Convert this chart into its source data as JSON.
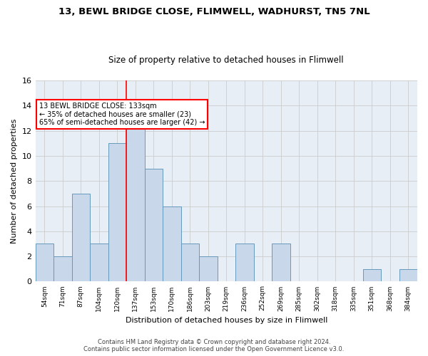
{
  "title1": "13, BEWL BRIDGE CLOSE, FLIMWELL, WADHURST, TN5 7NL",
  "title2": "Size of property relative to detached houses in Flimwell",
  "xlabel": "Distribution of detached houses by size in Flimwell",
  "ylabel": "Number of detached properties",
  "categories": [
    "54sqm",
    "71sqm",
    "87sqm",
    "104sqm",
    "120sqm",
    "137sqm",
    "153sqm",
    "170sqm",
    "186sqm",
    "203sqm",
    "219sqm",
    "236sqm",
    "252sqm",
    "269sqm",
    "285sqm",
    "302sqm",
    "318sqm",
    "335sqm",
    "351sqm",
    "368sqm",
    "384sqm"
  ],
  "values": [
    3,
    2,
    7,
    3,
    11,
    13,
    9,
    6,
    3,
    2,
    0,
    3,
    0,
    3,
    0,
    0,
    0,
    0,
    1,
    0,
    1
  ],
  "bar_color": "#c8d8ea",
  "bar_edge_color": "#6699bb",
  "vline_index": 4.5,
  "annotation_line1": "13 BEWL BRIDGE CLOSE: 133sqm",
  "annotation_line2": "← 35% of detached houses are smaller (23)",
  "annotation_line3": "65% of semi-detached houses are larger (42) →",
  "annotation_box_facecolor": "white",
  "annotation_box_edgecolor": "red",
  "vline_color": "red",
  "ylim": [
    0,
    16
  ],
  "yticks": [
    0,
    2,
    4,
    6,
    8,
    10,
    12,
    14,
    16
  ],
  "footer1": "Contains HM Land Registry data © Crown copyright and database right 2024.",
  "footer2": "Contains public sector information licensed under the Open Government Licence v3.0.",
  "grid_color": "#cccccc",
  "bg_color": "#e8eef6"
}
